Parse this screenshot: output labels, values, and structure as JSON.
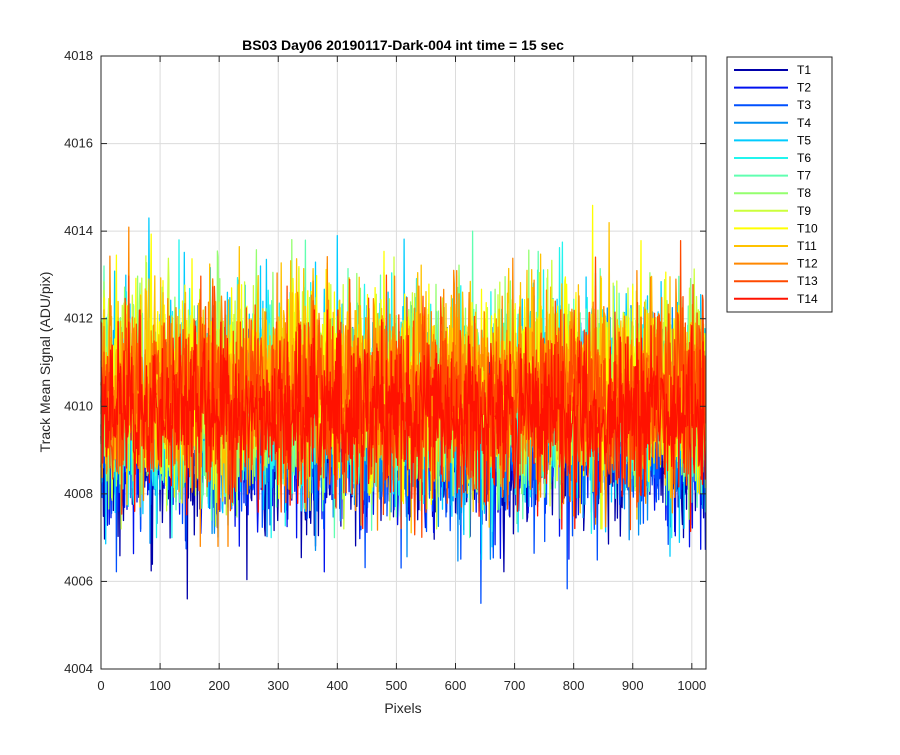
{
  "chart_data": {
    "type": "line",
    "title": "BS03 Day06 20190117-Dark-004 int time = 15 sec",
    "xlabel": "Pixels",
    "ylabel": "Track Mean Signal (ADU/pix)",
    "xlim": [
      0,
      1024
    ],
    "ylim": [
      4004,
      4018
    ],
    "xticks": [
      0,
      100,
      200,
      300,
      400,
      500,
      600,
      700,
      800,
      900,
      1000
    ],
    "yticks": [
      4004,
      4006,
      4008,
      4010,
      4012,
      4014,
      4016,
      4018
    ],
    "grid": true,
    "legend_position": "outside-right",
    "n_points_per_series": 1024,
    "series": [
      {
        "name": "T1",
        "color": "#0000aa",
        "mean": 4009.1,
        "sd": 1.0,
        "min": 4004.75,
        "max": 4011.0
      },
      {
        "name": "T2",
        "color": "#0012ef",
        "mean": 4009.3,
        "sd": 1.0,
        "min": 4005.2,
        "max": 4011.3
      },
      {
        "name": "T3",
        "color": "#0050ff",
        "mean": 4009.5,
        "sd": 1.05,
        "min": 4005.5,
        "max": 4011.8
      },
      {
        "name": "T4",
        "color": "#008ef2",
        "mean": 4009.7,
        "sd": 1.1,
        "min": 4006.0,
        "max": 4012.3
      },
      {
        "name": "T5",
        "color": "#00ccff",
        "mean": 4010.2,
        "sd": 1.2,
        "min": 4006.5,
        "max": 4015.3
      },
      {
        "name": "T6",
        "color": "#21f5ee",
        "mean": 4010.2,
        "sd": 1.15,
        "min": 4007.0,
        "max": 4013.8
      },
      {
        "name": "T7",
        "color": "#60ffb0",
        "mean": 4010.1,
        "sd": 1.1,
        "min": 4007.0,
        "max": 4014.0
      },
      {
        "name": "T8",
        "color": "#94ff6f",
        "mean": 4010.3,
        "sd": 1.1,
        "min": 4007.0,
        "max": 4014.8
      },
      {
        "name": "T9",
        "color": "#ccff3c",
        "mean": 4010.4,
        "sd": 1.1,
        "min": 4007.2,
        "max": 4014.5
      },
      {
        "name": "T10",
        "color": "#ffff00",
        "mean": 4010.5,
        "sd": 1.1,
        "min": 4007.2,
        "max": 4016.2
      },
      {
        "name": "T11",
        "color": "#ffc200",
        "mean": 4010.5,
        "sd": 1.1,
        "min": 4007.0,
        "max": 4014.2
      },
      {
        "name": "T12",
        "color": "#ff8800",
        "mean": 4010.4,
        "sd": 1.1,
        "min": 4006.8,
        "max": 4014.5
      },
      {
        "name": "T13",
        "color": "#ff4a00",
        "mean": 4010.1,
        "sd": 1.1,
        "min": 4006.2,
        "max": 4014.0
      },
      {
        "name": "T14",
        "color": "#ff1200",
        "mean": 4009.8,
        "sd": 0.9,
        "min": 4005.3,
        "max": 4012.2
      }
    ]
  }
}
